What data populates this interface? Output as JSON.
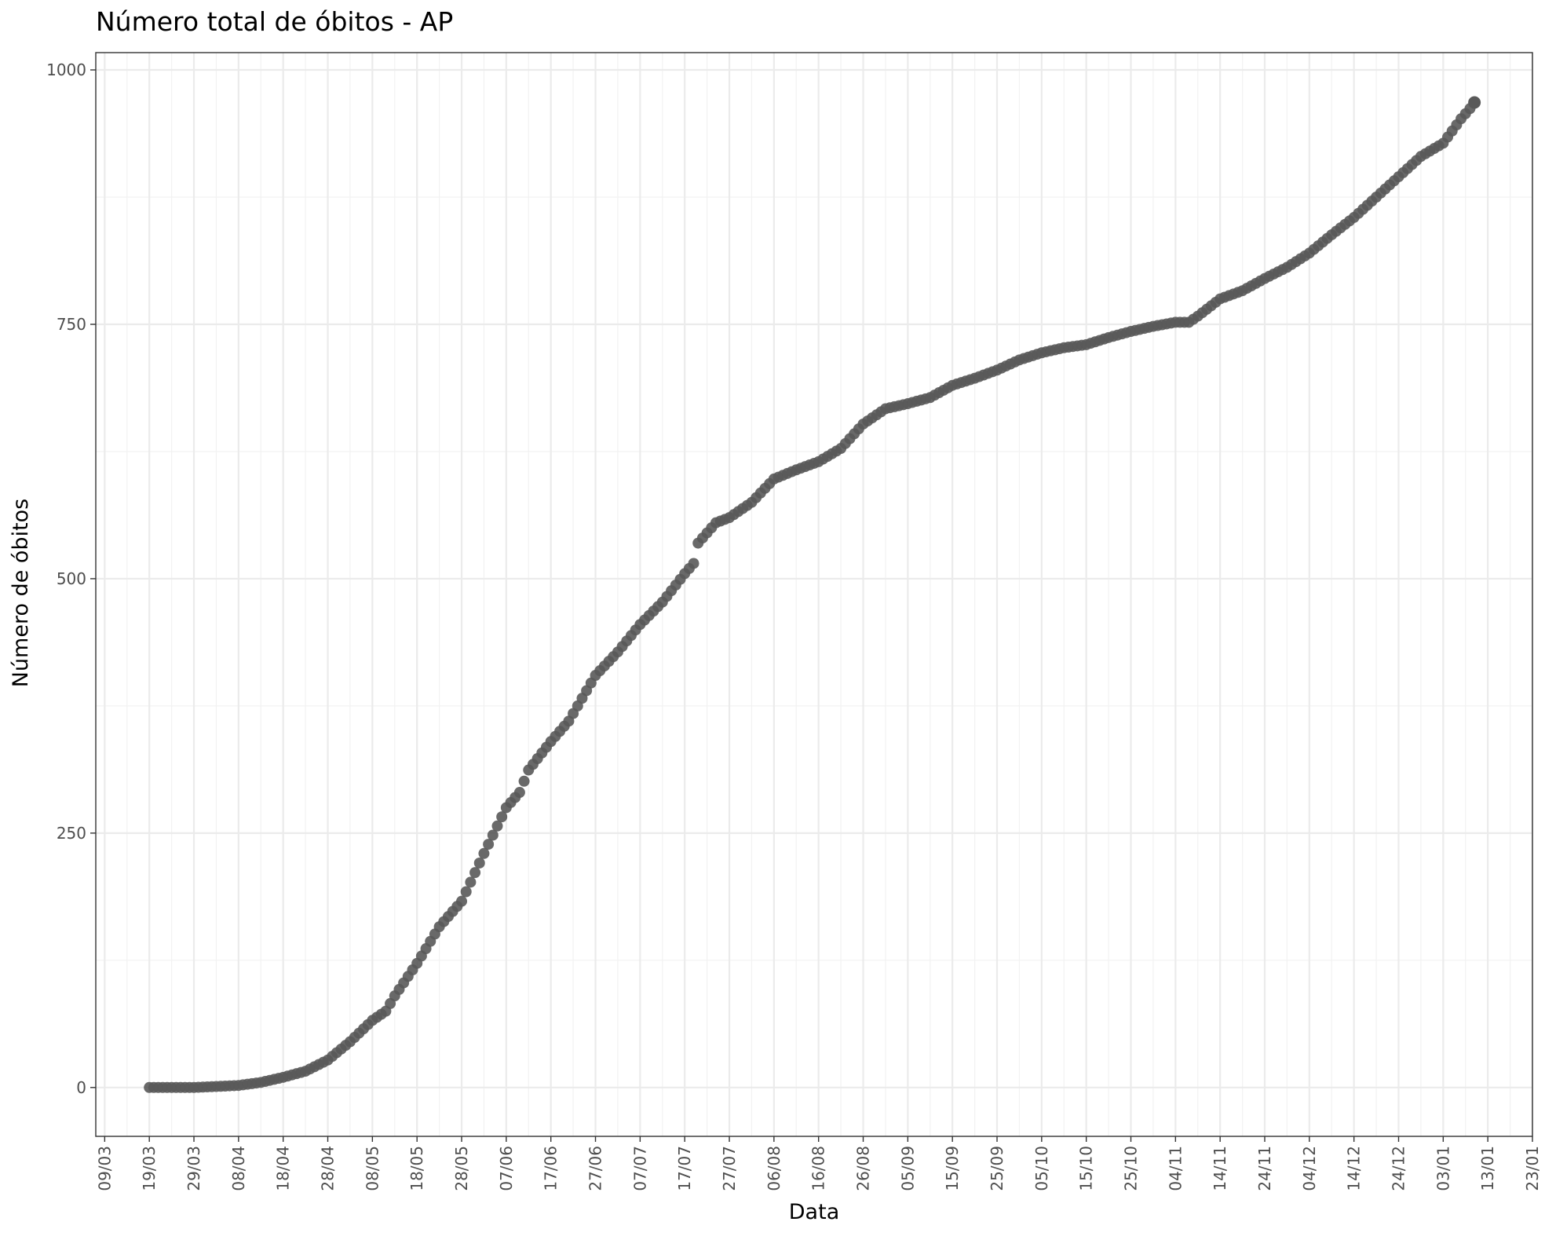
{
  "chart_data": {
    "type": "scatter",
    "title": "Número total de óbitos - AP",
    "xlabel": "Data",
    "ylabel": "Número de óbitos",
    "x_range": [
      "2020-03-07",
      "2021-01-23"
    ],
    "ylim": [
      -48,
      1017
    ],
    "grid": true,
    "legend": "none",
    "x_ticks": [
      "2020-03-09",
      "2020-03-19",
      "2020-03-29",
      "2020-04-08",
      "2020-04-18",
      "2020-04-28",
      "2020-05-08",
      "2020-05-18",
      "2020-05-28",
      "2020-06-07",
      "2020-06-17",
      "2020-06-27",
      "2020-07-07",
      "2020-07-17",
      "2020-07-27",
      "2020-08-06",
      "2020-08-16",
      "2020-08-26",
      "2020-09-05",
      "2020-09-15",
      "2020-09-25",
      "2020-10-05",
      "2020-10-15",
      "2020-10-25",
      "2020-11-04",
      "2020-11-14",
      "2020-11-24",
      "2020-12-04",
      "2020-12-14",
      "2020-12-24",
      "2021-01-03",
      "2021-01-13",
      "2021-01-23"
    ],
    "x_tick_labels": [
      "09/03",
      "19/03",
      "29/03",
      "08/04",
      "18/04",
      "28/04",
      "08/05",
      "18/05",
      "28/05",
      "07/06",
      "17/06",
      "27/06",
      "07/07",
      "17/07",
      "27/07",
      "06/08",
      "16/08",
      "26/08",
      "05/09",
      "15/09",
      "25/09",
      "05/10",
      "15/10",
      "25/10",
      "04/11",
      "14/11",
      "24/11",
      "04/12",
      "14/12",
      "24/12",
      "03/01",
      "13/01",
      "23/01"
    ],
    "y_ticks": [
      0,
      250,
      500,
      750,
      1000
    ],
    "y_tick_labels": [
      "0",
      "250",
      "500",
      "750",
      "1000"
    ],
    "series": [
      {
        "color": "#595959",
        "points": [
          [
            "2020-03-19",
            0
          ],
          [
            "2020-03-24",
            0
          ],
          [
            "2020-03-29",
            0
          ],
          [
            "2020-04-03",
            1
          ],
          [
            "2020-04-08",
            2
          ],
          [
            "2020-04-13",
            5
          ],
          [
            "2020-04-18",
            10
          ],
          [
            "2020-04-23",
            16
          ],
          [
            "2020-04-28",
            27
          ],
          [
            "2020-05-03",
            45
          ],
          [
            "2020-05-08",
            66
          ],
          [
            "2020-05-11",
            75
          ],
          [
            "2020-05-13",
            90
          ],
          [
            "2020-05-18",
            122
          ],
          [
            "2020-05-23",
            158
          ],
          [
            "2020-05-28",
            183
          ],
          [
            "2020-06-02",
            230
          ],
          [
            "2020-06-07",
            275
          ],
          [
            "2020-06-10",
            290
          ],
          [
            "2020-06-12",
            312
          ],
          [
            "2020-06-17",
            340
          ],
          [
            "2020-06-21",
            360
          ],
          [
            "2020-06-27",
            405
          ],
          [
            "2020-07-02",
            428
          ],
          [
            "2020-07-07",
            455
          ],
          [
            "2020-07-12",
            477
          ],
          [
            "2020-07-17",
            505
          ],
          [
            "2020-07-19",
            515
          ],
          [
            "2020-07-20",
            535
          ],
          [
            "2020-07-24",
            555
          ],
          [
            "2020-07-27",
            560
          ],
          [
            "2020-08-01",
            575
          ],
          [
            "2020-08-06",
            598
          ],
          [
            "2020-08-11",
            607
          ],
          [
            "2020-08-16",
            615
          ],
          [
            "2020-08-21",
            628
          ],
          [
            "2020-08-26",
            652
          ],
          [
            "2020-08-31",
            667
          ],
          [
            "2020-09-05",
            672
          ],
          [
            "2020-09-10",
            678
          ],
          [
            "2020-09-15",
            690
          ],
          [
            "2020-09-20",
            697
          ],
          [
            "2020-09-25",
            705
          ],
          [
            "2020-09-30",
            715
          ],
          [
            "2020-10-05",
            722
          ],
          [
            "2020-10-10",
            727
          ],
          [
            "2020-10-15",
            730
          ],
          [
            "2020-10-20",
            737
          ],
          [
            "2020-10-25",
            743
          ],
          [
            "2020-10-30",
            748
          ],
          [
            "2020-11-04",
            752
          ],
          [
            "2020-11-07",
            752
          ],
          [
            "2020-11-09",
            758
          ],
          [
            "2020-11-14",
            775
          ],
          [
            "2020-11-19",
            783
          ],
          [
            "2020-11-24",
            795
          ],
          [
            "2020-11-29",
            806
          ],
          [
            "2020-12-04",
            820
          ],
          [
            "2020-12-09",
            838
          ],
          [
            "2020-12-14",
            855
          ],
          [
            "2020-12-19",
            875
          ],
          [
            "2020-12-24",
            895
          ],
          [
            "2020-12-29",
            915
          ],
          [
            "2021-01-03",
            928
          ],
          [
            "2021-01-07",
            952
          ],
          [
            "2021-01-09",
            962
          ],
          [
            "2021-01-10",
            968
          ]
        ]
      }
    ]
  }
}
